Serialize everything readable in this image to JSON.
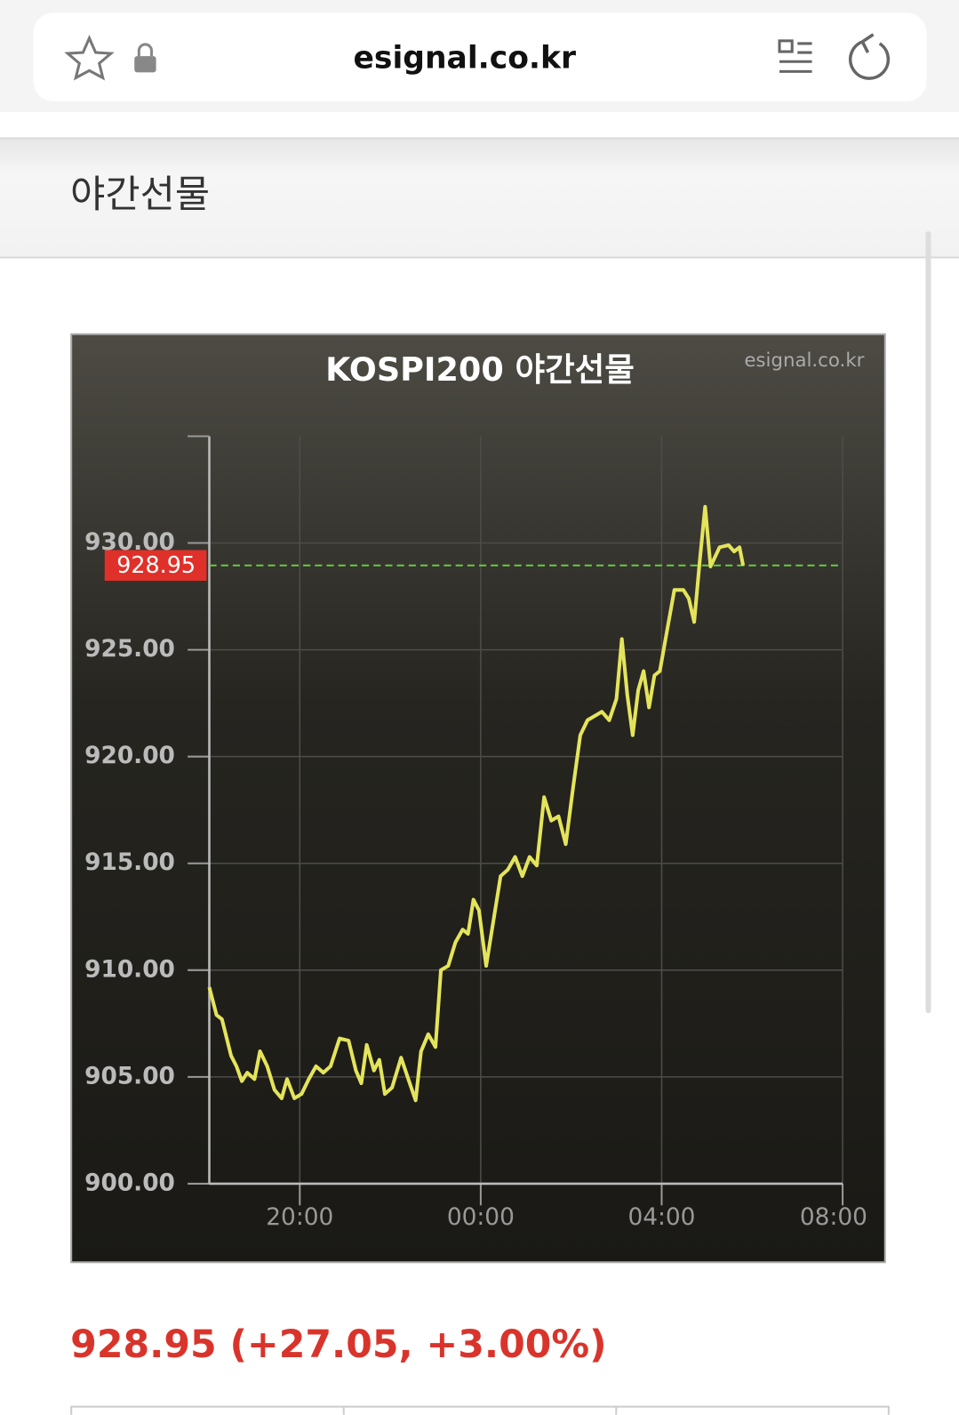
{
  "browser": {
    "url": "esignal.co.kr"
  },
  "header": {
    "title": "야간선물"
  },
  "chart_data": {
    "type": "line",
    "title": "KOSPI200 야간선물",
    "watermark": "esignal.co.kr",
    "x": [
      18.0,
      18.16,
      18.28,
      18.48,
      18.6,
      18.72,
      18.84,
      19.0,
      19.12,
      19.28,
      19.44,
      19.6,
      19.72,
      19.88,
      20.04,
      20.2,
      20.36,
      20.52,
      20.68,
      20.88,
      21.08,
      21.24,
      21.36,
      21.48,
      21.64,
      21.76,
      21.88,
      22.04,
      22.24,
      22.4,
      22.56,
      22.68,
      22.84,
      23.0,
      23.12,
      23.28,
      23.44,
      23.6,
      23.72,
      23.84,
      23.96,
      24.12,
      24.28,
      24.44,
      24.6,
      24.76,
      24.92,
      25.08,
      25.24,
      25.4,
      25.56,
      25.72,
      25.88,
      26.04,
      26.2,
      26.36,
      26.52,
      26.68,
      26.84,
      27.0,
      27.12,
      27.24,
      27.36,
      27.48,
      27.6,
      27.72,
      27.84,
      27.96,
      28.12,
      28.28,
      28.48,
      28.6,
      28.72,
      28.84,
      28.96,
      29.08,
      29.28,
      29.48,
      29.6,
      29.72,
      29.8
    ],
    "series": [
      {
        "color": "#e4e45c",
        "values": [
          909.2,
          907.9,
          907.7,
          906.0,
          905.5,
          904.8,
          905.2,
          904.9,
          906.2,
          905.5,
          904.4,
          904.0,
          904.9,
          904.0,
          904.2,
          904.9,
          905.5,
          905.2,
          905.5,
          906.8,
          906.7,
          905.3,
          904.7,
          906.5,
          905.3,
          905.8,
          904.2,
          904.5,
          905.9,
          904.9,
          903.9,
          906.2,
          907.0,
          906.4,
          910.0,
          910.2,
          911.3,
          911.9,
          911.7,
          913.3,
          912.8,
          910.2,
          912.3,
          914.4,
          914.7,
          915.3,
          914.4,
          915.3,
          914.9,
          918.1,
          917.0,
          917.2,
          915.9,
          918.5,
          921.0,
          921.7,
          921.9,
          922.1,
          921.7,
          922.7,
          925.5,
          922.9,
          921.0,
          923.1,
          924.0,
          922.3,
          923.8,
          924.0,
          925.9,
          927.8,
          927.8,
          927.4,
          926.3,
          929.1,
          931.7,
          928.9,
          929.8,
          929.9,
          929.6,
          929.8,
          928.95
        ]
      }
    ],
    "xlim": [
      18,
      32
    ],
    "ylim": [
      900,
      935
    ],
    "xticks": [
      {
        "value": 20,
        "label": "20:00"
      },
      {
        "value": 24,
        "label": "00:00"
      },
      {
        "value": 28,
        "label": "04:00"
      },
      {
        "value": 32,
        "label": "08:00"
      }
    ],
    "yticks": [
      {
        "value": 900,
        "label": "900.00"
      },
      {
        "value": 905,
        "label": "905.00"
      },
      {
        "value": 910,
        "label": "910.00"
      },
      {
        "value": 915,
        "label": "915.00"
      },
      {
        "value": 920,
        "label": "920.00"
      },
      {
        "value": 925,
        "label": "925.00"
      },
      {
        "value": 930,
        "label": "930.00"
      }
    ],
    "grid": true,
    "current_value": 928.95,
    "current_color": "#e0302a"
  },
  "quote": "928.95 (+27.05, +3.00%)"
}
